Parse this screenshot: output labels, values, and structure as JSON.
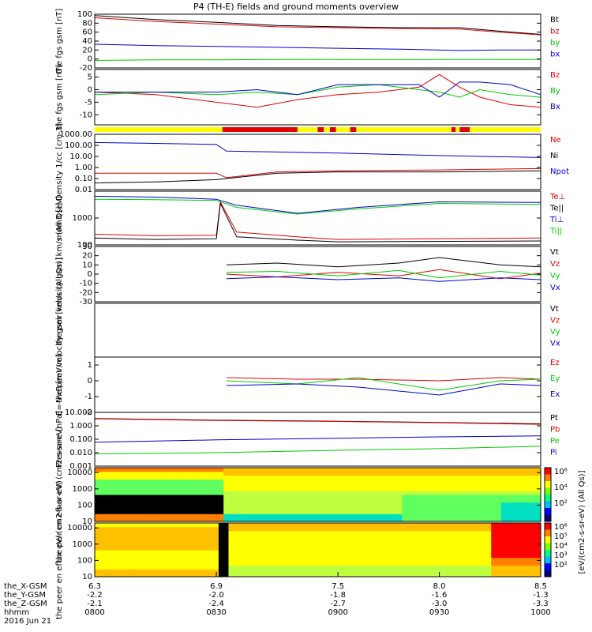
{
  "title": "P4 (TH-E) fields and ground moments overview",
  "colors": {
    "black": "#000000",
    "red": "#e00000",
    "green": "#00cc00",
    "blue": "#0000cc",
    "yellow": "#ffff00",
    "barred": "#e00000"
  },
  "chart_data": [
    {
      "type": "line",
      "name": "fgs_gsm",
      "ylabel": "the fgs gsm [nT]",
      "yticks": [
        "100",
        "80",
        "60",
        "40",
        "20",
        "0",
        "-20"
      ],
      "ylim": [
        -20,
        100
      ],
      "legend": [
        {
          "label": "Bt",
          "color": "black"
        },
        {
          "label": "bz",
          "color": "red"
        },
        {
          "label": "by",
          "color": "green"
        },
        {
          "label": "bx",
          "color": "blue"
        }
      ],
      "series": [
        {
          "label": "Bt",
          "color": "black",
          "x": [
            6.3,
            6.6,
            6.9,
            7.2,
            7.5,
            7.8,
            8.1,
            8.3,
            8.5
          ],
          "y": [
            97,
            88,
            82,
            75,
            72,
            70,
            70,
            62,
            55
          ]
        },
        {
          "label": "bz",
          "color": "red",
          "x": [
            6.3,
            6.6,
            6.9,
            7.2,
            7.5,
            7.8,
            8.1,
            8.3,
            8.5
          ],
          "y": [
            92,
            84,
            78,
            72,
            70,
            68,
            67,
            60,
            54
          ]
        },
        {
          "label": "by",
          "color": "green",
          "x": [
            6.3,
            6.6,
            6.9,
            7.2,
            7.5,
            7.8,
            8.1,
            8.3,
            8.5
          ],
          "y": [
            -3,
            -2,
            -2,
            -1,
            -1,
            -1,
            -1,
            -1,
            -1
          ]
        },
        {
          "label": "bx",
          "color": "blue",
          "x": [
            6.3,
            6.6,
            6.9,
            7.2,
            7.5,
            7.8,
            8.1,
            8.3,
            8.5
          ],
          "y": [
            33,
            30,
            28,
            26,
            24,
            22,
            19,
            20,
            20
          ]
        }
      ]
    },
    {
      "type": "line",
      "name": "fgs_gsm_detrended",
      "ylabel": "the fgs gsm [nT]",
      "yticks": [
        "5",
        "0",
        "-5",
        "-10"
      ],
      "ylim": [
        -14,
        8
      ],
      "legend": [
        {
          "label": "Bz",
          "color": "red"
        },
        {
          "label": "By",
          "color": "green"
        },
        {
          "label": "Bx",
          "color": "blue"
        }
      ],
      "series": [
        {
          "label": "Bz",
          "color": "red",
          "x": [
            6.3,
            6.6,
            6.9,
            7.1,
            7.3,
            7.5,
            7.7,
            7.9,
            8.0,
            8.1,
            8.2,
            8.35,
            8.5
          ],
          "y": [
            -1,
            -2,
            -5,
            -7,
            -4,
            -2,
            -1,
            1,
            6,
            1,
            -3,
            -6,
            -7
          ]
        },
        {
          "label": "By",
          "color": "green",
          "x": [
            6.3,
            6.6,
            6.9,
            7.1,
            7.3,
            7.5,
            7.7,
            7.9,
            8.0,
            8.1,
            8.2,
            8.35,
            8.5
          ],
          "y": [
            -2,
            -1,
            -2,
            -1,
            -2,
            1,
            2,
            0,
            -1,
            -3,
            0,
            -2,
            -3
          ]
        },
        {
          "label": "Bx",
          "color": "blue",
          "x": [
            6.3,
            6.6,
            6.9,
            7.1,
            7.3,
            7.5,
            7.7,
            7.9,
            8.0,
            8.1,
            8.2,
            8.35,
            8.5
          ],
          "y": [
            -1,
            -1,
            -1,
            0,
            -2,
            2,
            2,
            2,
            -3,
            3,
            3,
            2,
            -2
          ]
        }
      ]
    },
    {
      "type": "line",
      "name": "density",
      "ylabel": "Density 1/cc [cm-3]",
      "log": true,
      "yticks": [
        "1000.00",
        "100.00",
        "10.00",
        "1.00",
        "0.10",
        "0.01"
      ],
      "ylim": [
        0.01,
        1000
      ],
      "legend": [
        {
          "label": "Ne",
          "color": "red"
        },
        {
          "label": "Ni",
          "color": "black"
        },
        {
          "label": "Npot",
          "color": "blue"
        }
      ],
      "series": [
        {
          "label": "Ne",
          "color": "red",
          "x": [
            6.3,
            6.6,
            6.9,
            6.95,
            7.2,
            7.5,
            8.0,
            8.5
          ],
          "y": [
            0.3,
            0.3,
            0.3,
            0.12,
            0.4,
            0.5,
            0.6,
            0.8
          ]
        },
        {
          "label": "Ni",
          "color": "black",
          "x": [
            6.3,
            6.6,
            6.9,
            6.95,
            7.2,
            7.5,
            8.0,
            8.5
          ],
          "y": [
            0.04,
            0.05,
            0.08,
            0.1,
            0.3,
            0.4,
            0.4,
            0.5
          ]
        },
        {
          "label": "Npot",
          "color": "blue",
          "x": [
            6.3,
            6.6,
            6.9,
            6.95,
            7.2,
            7.5,
            8.0,
            8.5
          ],
          "y": [
            180,
            150,
            120,
            30,
            25,
            20,
            12,
            8
          ]
        }
      ]
    },
    {
      "type": "line",
      "name": "temperature",
      "ylabel": "mom3 [eV]",
      "log": true,
      "yticks": [
        "1000",
        "100"
      ],
      "ylim": [
        100,
        10000
      ],
      "legend": [
        {
          "label": "Te⊥",
          "color": "red"
        },
        {
          "label": "Te||",
          "color": "black"
        },
        {
          "label": "Ti⊥",
          "color": "blue"
        },
        {
          "label": "Ti||",
          "color": "green"
        }
      ],
      "series": [
        {
          "label": "Te⊥",
          "color": "red",
          "x": [
            6.3,
            6.6,
            6.9,
            6.92,
            7.0,
            7.3,
            7.5,
            8.5
          ],
          "y": [
            250,
            220,
            230,
            4000,
            300,
            200,
            160,
            180
          ]
        },
        {
          "label": "Te||",
          "color": "black",
          "x": [
            6.3,
            6.6,
            6.9,
            6.92,
            7.0,
            7.3,
            7.5,
            8.5
          ],
          "y": [
            180,
            160,
            170,
            3500,
            200,
            150,
            130,
            140
          ]
        },
        {
          "label": "Ti⊥",
          "color": "blue",
          "x": [
            6.3,
            6.6,
            6.9,
            7.0,
            7.3,
            7.6,
            8.0,
            8.5
          ],
          "y": [
            6500,
            6000,
            5000,
            3000,
            1500,
            2500,
            4000,
            3800
          ]
        },
        {
          "label": "Ti||",
          "color": "green",
          "x": [
            6.3,
            6.6,
            6.9,
            7.0,
            7.3,
            7.6,
            8.0,
            8.5
          ],
          "y": [
            5000,
            4800,
            4500,
            2500,
            1400,
            2200,
            3500,
            3200
          ]
        }
      ]
    },
    {
      "type": "line",
      "name": "peir_velocity",
      "ylabel": "the peir velocity gsm [km/s (All Qs)]",
      "yticks": [
        "30",
        "20",
        "10",
        "0",
        "-10",
        "-20",
        "-30"
      ],
      "ylim": [
        -30,
        30
      ],
      "legend": [
        {
          "label": "Vt",
          "color": "black"
        },
        {
          "label": "Vz",
          "color": "red"
        },
        {
          "label": "Vy",
          "color": "green"
        },
        {
          "label": "Vx",
          "color": "blue"
        }
      ],
      "series": [
        {
          "label": "Vt",
          "color": "black",
          "x": [
            6.95,
            7.2,
            7.5,
            7.8,
            8.0,
            8.3,
            8.5
          ],
          "y": [
            10,
            12,
            8,
            12,
            18,
            10,
            8
          ]
        },
        {
          "label": "Vz",
          "color": "red",
          "x": [
            6.95,
            7.2,
            7.5,
            7.8,
            8.0,
            8.3,
            8.5
          ],
          "y": [
            0,
            -3,
            2,
            -2,
            5,
            -5,
            1
          ]
        },
        {
          "label": "Vy",
          "color": "green",
          "x": [
            6.95,
            7.2,
            7.5,
            7.8,
            8.0,
            8.3,
            8.5
          ],
          "y": [
            2,
            3,
            -2,
            4,
            -4,
            3,
            -1
          ]
        },
        {
          "label": "Vx",
          "color": "blue",
          "x": [
            6.95,
            7.2,
            7.5,
            7.8,
            8.0,
            8.3,
            8.5
          ],
          "y": [
            -5,
            -3,
            -6,
            -4,
            -8,
            -4,
            -6
          ]
        }
      ]
    },
    {
      "type": "line",
      "name": "peer_velocity",
      "ylabel": "the peer velocity gsm [km/s (All Qs)]",
      "yticks": [],
      "ylim": [
        -30,
        30
      ],
      "legend": [
        {
          "label": "Vt",
          "color": "black"
        },
        {
          "label": "Vz",
          "color": "red"
        },
        {
          "label": "Vy",
          "color": "green"
        },
        {
          "label": "Vx",
          "color": "blue"
        }
      ],
      "series": []
    },
    {
      "type": "line",
      "name": "efield",
      "ylabel": "E=-VxB [mV/m]",
      "yticks": [
        "1",
        "0",
        "-1",
        "-2"
      ],
      "ylim": [
        -2,
        1.5
      ],
      "legend": [
        {
          "label": "Ez",
          "color": "red"
        },
        {
          "label": "Ey",
          "color": "green"
        },
        {
          "label": "Ex",
          "color": "blue"
        }
      ],
      "series": [
        {
          "label": "Ez",
          "color": "red",
          "x": [
            6.95,
            7.3,
            7.6,
            8.0,
            8.3,
            8.5
          ],
          "y": [
            0.2,
            0.1,
            0.1,
            0.0,
            0.2,
            0.1
          ]
        },
        {
          "label": "Ey",
          "color": "green",
          "x": [
            6.95,
            7.3,
            7.6,
            8.0,
            8.3,
            8.5
          ],
          "y": [
            0.0,
            -0.2,
            0.2,
            -0.6,
            0.0,
            0.1
          ]
        },
        {
          "label": "Ex",
          "color": "blue",
          "x": [
            6.95,
            7.3,
            7.6,
            8.0,
            8.3,
            8.5
          ],
          "y": [
            -0.3,
            -0.2,
            -0.4,
            -0.9,
            -0.2,
            -0.3
          ]
        }
      ]
    },
    {
      "type": "line",
      "name": "pressure",
      "ylabel": "Pressure [nPa]",
      "log": true,
      "yticks": [
        "10.000",
        "1.000",
        "0.100",
        "0.010",
        "0.001"
      ],
      "ylim": [
        0.001,
        10
      ],
      "legend": [
        {
          "label": "Pt",
          "color": "black"
        },
        {
          "label": "Pb",
          "color": "red"
        },
        {
          "label": "Pe",
          "color": "green"
        },
        {
          "label": "Pi",
          "color": "blue"
        }
      ],
      "series": [
        {
          "label": "Pt",
          "color": "black",
          "x": [
            6.3,
            6.9,
            7.5,
            8.0,
            8.5
          ],
          "y": [
            3.5,
            2.6,
            2.2,
            1.8,
            1.4
          ]
        },
        {
          "label": "Pb",
          "color": "red",
          "x": [
            6.3,
            6.9,
            7.5,
            8.0,
            8.5
          ],
          "y": [
            3.3,
            2.5,
            2.1,
            1.7,
            1.3
          ]
        },
        {
          "label": "Pe",
          "color": "green",
          "x": [
            6.3,
            6.9,
            7.5,
            8.0,
            8.5
          ],
          "y": [
            0.008,
            0.01,
            0.015,
            0.02,
            0.03
          ]
        },
        {
          "label": "Pi",
          "color": "blue",
          "x": [
            6.3,
            6.9,
            7.5,
            8.0,
            8.5
          ],
          "y": [
            0.06,
            0.09,
            0.12,
            0.15,
            0.18
          ]
        }
      ]
    },
    {
      "type": "heatmap",
      "name": "peir_eflux",
      "ylabel": "the peir en eflux eV/ (cm2-s-sr-eV)",
      "log": true,
      "yticks": [
        "10000",
        "1000",
        "100",
        "10"
      ],
      "ylim": [
        10,
        20000
      ]
    },
    {
      "type": "heatmap",
      "name": "peer_eflux",
      "ylabel": "the peer en eflux eV/ (cm2-s-sr-eV)",
      "log": true,
      "yticks": [
        "10000",
        "1000",
        "100",
        "10"
      ],
      "ylim": [
        10,
        20000
      ]
    }
  ],
  "colorbar": {
    "ticks1": [
      "10⁶",
      "10⁴",
      "10²"
    ],
    "ticks2": [
      "10⁶",
      "10⁵",
      "10⁴",
      "10³",
      "10²"
    ],
    "label1": "[eV/(cm2-s-sr-eV) (All Qs)]",
    "label2": "[eV/(cm^2-s-sr-eV) (All Qs)]"
  },
  "xaxis": {
    "ticks": [
      6.3,
      6.9,
      7.5,
      8.0,
      8.5
    ],
    "rows": [
      {
        "label": "the_X-GSM",
        "values": [
          "6.3",
          "6.9",
          "7.5",
          "8.0",
          "8.5"
        ]
      },
      {
        "label": "the_Y-GSM",
        "values": [
          "-2.2",
          "-2.0",
          "-1.8",
          "-1.6",
          "-1.3"
        ]
      },
      {
        "label": "the_Z-GSM",
        "values": [
          "-2.1",
          "-2.4",
          "-2.7",
          "-3.0",
          "-3.3"
        ]
      },
      {
        "label": "hhmm",
        "values": [
          "0800",
          "0830",
          "0900",
          "0930",
          "1000"
        ]
      }
    ],
    "date": "2016 Jun 21"
  }
}
